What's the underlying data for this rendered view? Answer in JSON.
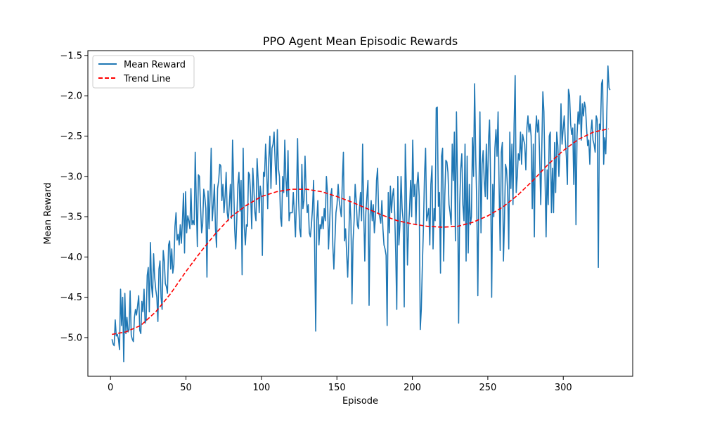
{
  "chart_data": {
    "type": "line",
    "title": "PPO Agent Mean Episodic Rewards",
    "xlabel": "Episode",
    "ylabel": "Mean Reward",
    "xlim": [
      -15,
      346
    ],
    "ylim": [
      -5.48,
      -1.44
    ],
    "x_ticks": [
      0,
      50,
      100,
      150,
      200,
      250,
      300
    ],
    "y_ticks": [
      -5.0,
      -4.5,
      -4.0,
      -3.5,
      -3.0,
      -2.5,
      -2.0,
      -1.5
    ],
    "grid": false,
    "legend_position": "top-left",
    "series": [
      {
        "name": "Mean Reward",
        "color": "#1f77b4",
        "style": "solid",
        "x_start": 1,
        "x_end": 331,
        "values": [
          -5.02,
          -5.08,
          -5.1,
          -4.78,
          -4.98,
          -4.96,
          -5.02,
          -5.15,
          -4.4,
          -4.85,
          -4.5,
          -5.3,
          -4.45,
          -4.95,
          -4.75,
          -4.93,
          -4.9,
          -4.42,
          -4.97,
          -5.02,
          -5.05,
          -4.75,
          -4.65,
          -4.72,
          -4.6,
          -4.48,
          -4.91,
          -4.95,
          -4.55,
          -4.68,
          -4.4,
          -4.82,
          -4.78,
          -4.23,
          -4.13,
          -4.68,
          -3.82,
          -4.35,
          -4.5,
          -3.96,
          -4.25,
          -4.4,
          -4.5,
          -4.8,
          -4.15,
          -4.05,
          -4.5,
          -4.65,
          -3.92,
          -4.05,
          -4.33,
          -4.37,
          -4.45,
          -3.85,
          -3.8,
          -4.15,
          -3.9,
          -4.2,
          -4.1,
          -3.62,
          -3.45,
          -3.79,
          -3.72,
          -3.85,
          -3.6,
          -3.83,
          -3.55,
          -3.21,
          -3.95,
          -3.19,
          -3.7,
          -3.49,
          -3.55,
          -3.65,
          -3.15,
          -3.6,
          -3.55,
          -3.6,
          -2.7,
          -3.31,
          -3.87,
          -2.98,
          -3.0,
          -3.38,
          -3.7,
          -3.59,
          -3.16,
          -3.25,
          -3.4,
          -4.25,
          -3.18,
          -3.65,
          -3.23,
          -2.65,
          -3.55,
          -3.35,
          -3.1,
          -3.65,
          -3.88,
          -3.15,
          -3.05,
          -2.85,
          -2.87,
          -3.3,
          -3.1,
          -3.45,
          -3.25,
          -2.95,
          -3.45,
          -3.55,
          -3.35,
          -3.1,
          -3.52,
          -2.55,
          -3.06,
          -3.65,
          -3.9,
          -3.55,
          -3.1,
          -2.95,
          -3.43,
          -3.05,
          -4.22,
          -2.65,
          -3.62,
          -3.85,
          -3.6,
          -3.62,
          -2.95,
          -2.98,
          -3.25,
          -3.65,
          -2.9,
          -3.15,
          -3.45,
          -3.55,
          -2.78,
          -3.05,
          -3.45,
          -3.12,
          -3.25,
          -3.98,
          -2.95,
          -3.0,
          -2.6,
          -2.88,
          -3.4,
          -2.78,
          -2.5,
          -3.15,
          -2.65,
          -2.6,
          -2.45,
          -2.85,
          -3.1,
          -2.42,
          -2.9,
          -3.0,
          -3.5,
          -3.62,
          -3.0,
          -3.2,
          -2.55,
          -3.02,
          -3.25,
          -2.68,
          -3.55,
          -3.45,
          -3.45,
          -3.45,
          -3.2,
          -3.48,
          -3.75,
          -3.25,
          -2.53,
          -3.3,
          -3.65,
          -3.75,
          -2.85,
          -3.4,
          -3.3,
          -2.75,
          -3.15,
          -3.45,
          -3.35,
          -3.7,
          -3.75,
          -3.6,
          -3.4,
          -3.05,
          -3.9,
          -4.92,
          -3.55,
          -3.3,
          -3.85,
          -3.6,
          -3.65,
          -3.5,
          -3.65,
          -3.4,
          -3.55,
          -3.0,
          -3.2,
          -3.9,
          -3.6,
          -3.25,
          -3.15,
          -3.85,
          -4.15,
          -3.8,
          -3.45,
          -3.35,
          -3.1,
          -3.3,
          -3.4,
          -3.5,
          -3.05,
          -2.7,
          -3.8,
          -3.65,
          -3.95,
          -4.25,
          -3.8,
          -3.25,
          -3.55,
          -4.58,
          -3.8,
          -3.55,
          -3.1,
          -3.3,
          -3.6,
          -3.65,
          -3.4,
          -3.2,
          -3.55,
          -2.6,
          -3.45,
          -4.05,
          -3.45,
          -3.25,
          -3.05,
          -4.6,
          -3.48,
          -3.3,
          -3.55,
          -3.35,
          -3.7,
          -3.5,
          -3.05,
          -2.9,
          -3.45,
          -3.5,
          -3.58,
          -3.3,
          -3.65,
          -3.85,
          -3.9,
          -3.98,
          -4.85,
          -3.2,
          -3.7,
          -3.12,
          -3.45,
          -3.25,
          -3.15,
          -3.45,
          -3.95,
          -4.65,
          -3.0,
          -3.85,
          -3.6,
          -3.0,
          -3.4,
          -3.55,
          -4.62,
          -2.6,
          -3.15,
          -4.1,
          -3.65,
          -3.4,
          -3.05,
          -3.5,
          -2.55,
          -3.25,
          -3.1,
          -3.6,
          -3.1,
          -2.95,
          -3.25,
          -4.9,
          -4.65,
          -4.1,
          -3.65,
          -3.0,
          -2.65,
          -3.55,
          -3.48,
          -3.4,
          -3.85,
          -3.1,
          -2.87,
          -3.9,
          -3.4,
          -3.55,
          -2.15,
          -2.14,
          -3.37,
          -3.2,
          -4.2,
          -2.75,
          -2.65,
          -4.05,
          -3.25,
          -2.8,
          -2.82,
          -2.95,
          -3.35,
          -3.45,
          -3.6,
          -2.6,
          -3.05,
          -2.45,
          -3.8,
          -2.2,
          -3.15,
          -4.82,
          -3.35,
          -2.9,
          -2.72,
          -3.35,
          -3.55,
          -2.6,
          -4.05,
          -2.75,
          -3.95,
          -3.1,
          -3.6,
          -3.5,
          -2.52,
          -3.0,
          -1.85,
          -2.75,
          -3.35,
          -4.48,
          -3.2,
          -2.2,
          -3.7,
          -2.85,
          -2.68,
          -3.05,
          -3.25,
          -2.6,
          -3.28,
          -2.55,
          -2.3,
          -3.05,
          -4.5,
          -3.1,
          -3.5,
          -2.65,
          -2.42,
          -2.75,
          -2.2,
          -3.15,
          -3.92,
          -2.7,
          -2.58,
          -4.05,
          -3.55,
          -2.85,
          -2.92,
          -3.2,
          -3.9,
          -2.45,
          -3.15,
          -2.6,
          -3.35,
          -2.35,
          -1.75,
          -3.2,
          -3.0,
          -2.72,
          -2.8,
          -2.45,
          -2.85,
          -2.48,
          -2.55,
          -2.6,
          -2.92,
          -2.4,
          -2.25,
          -2.45,
          -2.35,
          -2.5,
          -3.4,
          -2.6,
          -3.75,
          -2.48,
          -2.25,
          -2.45,
          -2.3,
          -2.8,
          -3.35,
          -2.65,
          -1.95,
          -2.2,
          -3.02,
          -3.75,
          -2.92,
          -3.35,
          -2.5,
          -2.45,
          -3.45,
          -2.9,
          -3.45,
          -2.58,
          -3.2,
          -2.45,
          -2.62,
          -3.0,
          -2.7,
          -2.1,
          -2.6,
          -2.42,
          -2.25,
          -2.55,
          -2.75,
          -3.1,
          -1.92,
          -2.0,
          -2.35,
          -2.48,
          -2.4,
          -3.1,
          -2.35,
          -3.6,
          -2.5,
          -2.2,
          -2.35,
          -2.0,
          -2.55,
          -2.1,
          -2.25,
          -2.08,
          -2.15,
          -2.4,
          -2.62,
          -2.55,
          -2.85,
          -2.45,
          -2.3,
          -2.55,
          -2.6,
          -2.7,
          -2.25,
          -2.3,
          -4.13,
          -2.35,
          -2.42,
          -1.85,
          -1.8,
          -2.85,
          -2.52,
          -2.72,
          -2.2,
          -1.63,
          -1.9,
          -1.93
        ]
      },
      {
        "name": "Trend Line",
        "color": "#ff0000",
        "style": "dashed",
        "x": [
          1,
          10,
          20,
          30,
          40,
          50,
          60,
          70,
          80,
          90,
          100,
          110,
          120,
          130,
          140,
          150,
          160,
          170,
          180,
          190,
          200,
          210,
          220,
          230,
          240,
          250,
          260,
          270,
          280,
          290,
          300,
          310,
          320,
          330
        ],
        "values": [
          -4.96,
          -4.93,
          -4.85,
          -4.68,
          -4.45,
          -4.18,
          -3.93,
          -3.7,
          -3.5,
          -3.36,
          -3.25,
          -3.19,
          -3.16,
          -3.16,
          -3.19,
          -3.25,
          -3.32,
          -3.4,
          -3.48,
          -3.55,
          -3.59,
          -3.62,
          -3.63,
          -3.62,
          -3.57,
          -3.49,
          -3.38,
          -3.23,
          -3.05,
          -2.85,
          -2.68,
          -2.54,
          -2.45,
          -2.41
        ]
      }
    ]
  }
}
